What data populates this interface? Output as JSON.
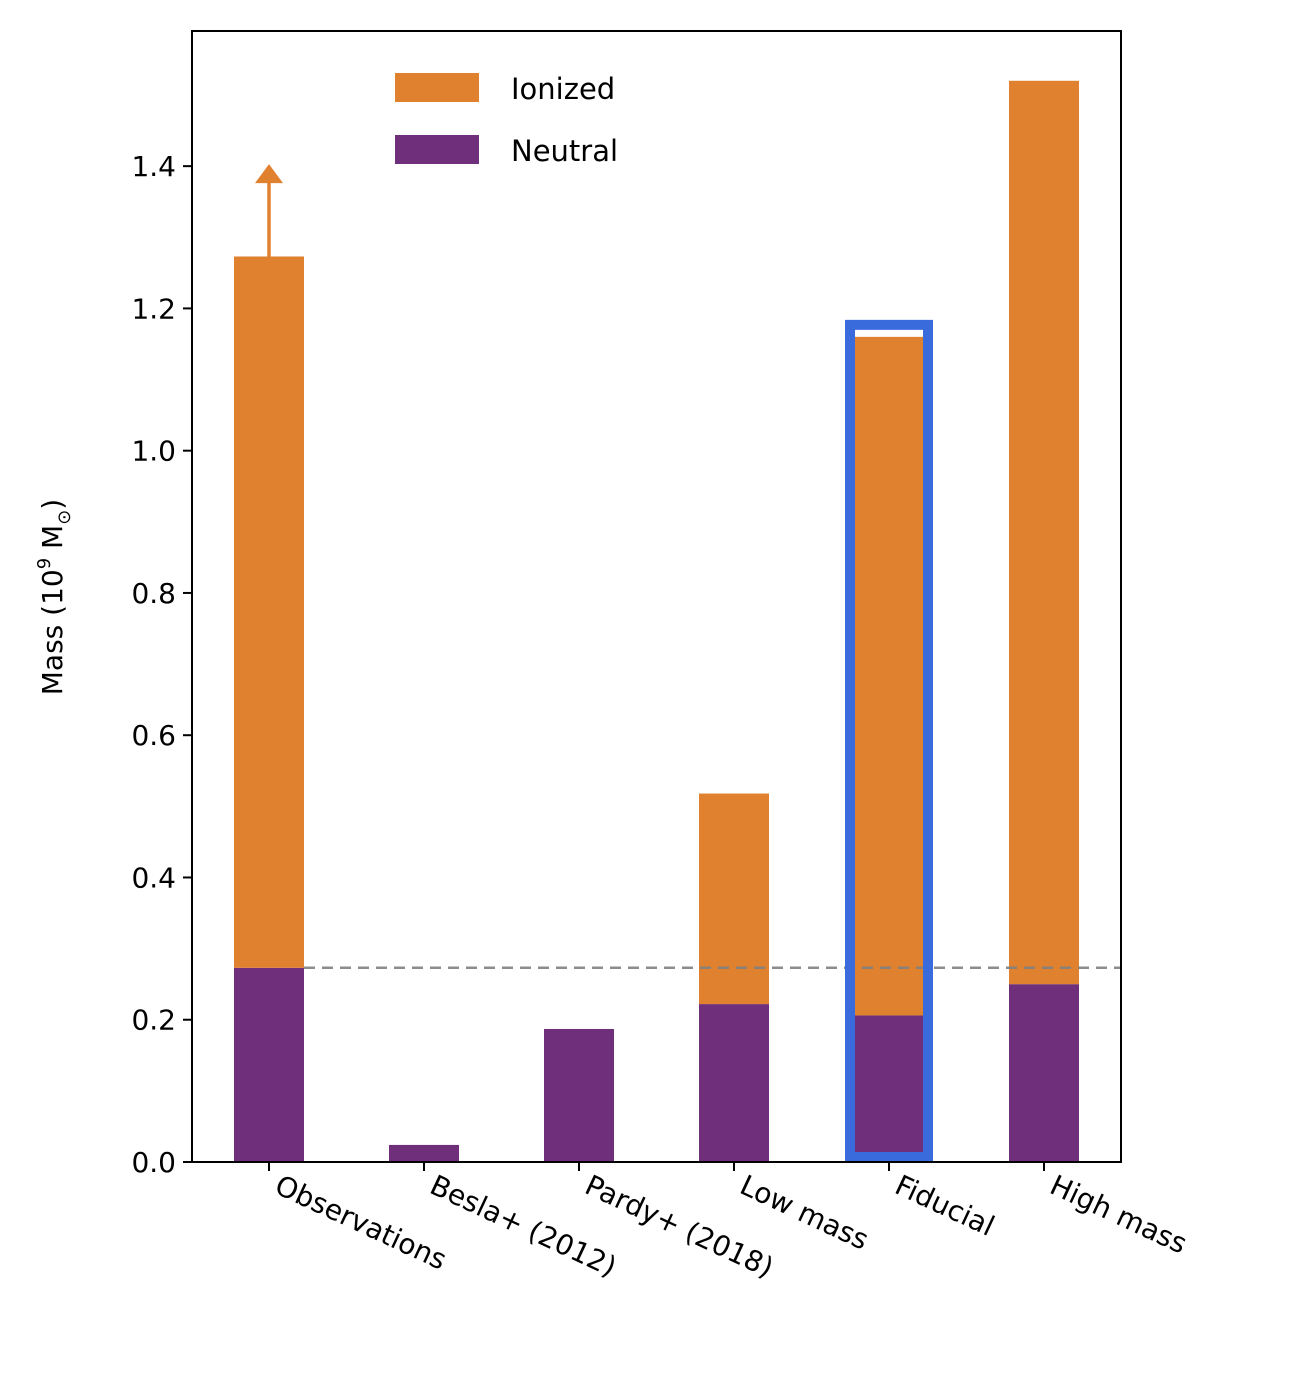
{
  "chart_data": {
    "type": "bar",
    "stacked": true,
    "categories": [
      "Observations",
      "Besla+ (2012)",
      "Pardy+ (2018)",
      "Low mass",
      "Fiducial",
      "High mass"
    ],
    "series": [
      {
        "name": "Neutral",
        "color": "#6f2f7b",
        "values": [
          0.273,
          0.024,
          0.187,
          0.222,
          0.206,
          0.25
        ]
      },
      {
        "name": "Ionized",
        "color": "#e08130",
        "values": [
          1.0,
          0.0,
          0.0,
          0.296,
          0.954,
          1.27
        ]
      }
    ],
    "ylabel": "Mass (10",
    "ylabel_sup": "9",
    "ylabel_tail": " M",
    "ylabel_sub": "⊙",
    "ylabel_close": ")",
    "ylim": [
      0,
      1.59
    ],
    "yticks": [
      "0.0",
      "0.2",
      "0.4",
      "0.6",
      "0.8",
      "1.0",
      "1.2",
      "1.4"
    ],
    "ytick_values": [
      0.0,
      0.2,
      0.4,
      0.6,
      0.8,
      1.0,
      1.2,
      1.4
    ],
    "reference_line": {
      "y": 0.273,
      "style": "dashed",
      "color": "#808080"
    },
    "lower_limit_arrow": {
      "category": "Observations",
      "from": 1.273,
      "to": 1.4,
      "color": "#e08130"
    },
    "highlight": {
      "category": "Fiducial",
      "color": "#3a6bdc"
    },
    "legend": {
      "position": "top-center",
      "entries": [
        "Ionized",
        "Neutral"
      ]
    },
    "grid": false
  }
}
